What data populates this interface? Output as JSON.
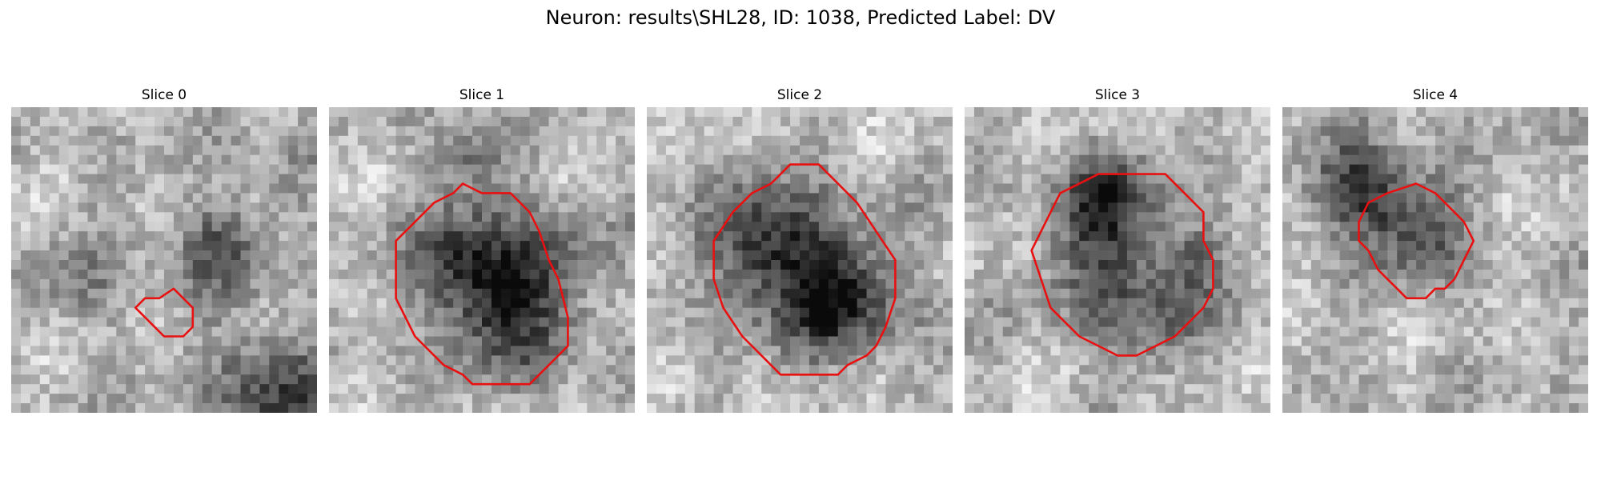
{
  "title": "Neuron: results\\SHL28, ID: 1038, Predicted Label: DV",
  "outline_color": "#e81010",
  "panels": [
    {
      "label": "Slice 0",
      "seed": 11
    },
    {
      "label": "Slice 1",
      "seed": 23
    },
    {
      "label": "Slice 2",
      "seed": 37
    },
    {
      "label": "Slice 3",
      "seed": 41
    },
    {
      "label": "Slice 4",
      "seed": 59
    }
  ]
}
